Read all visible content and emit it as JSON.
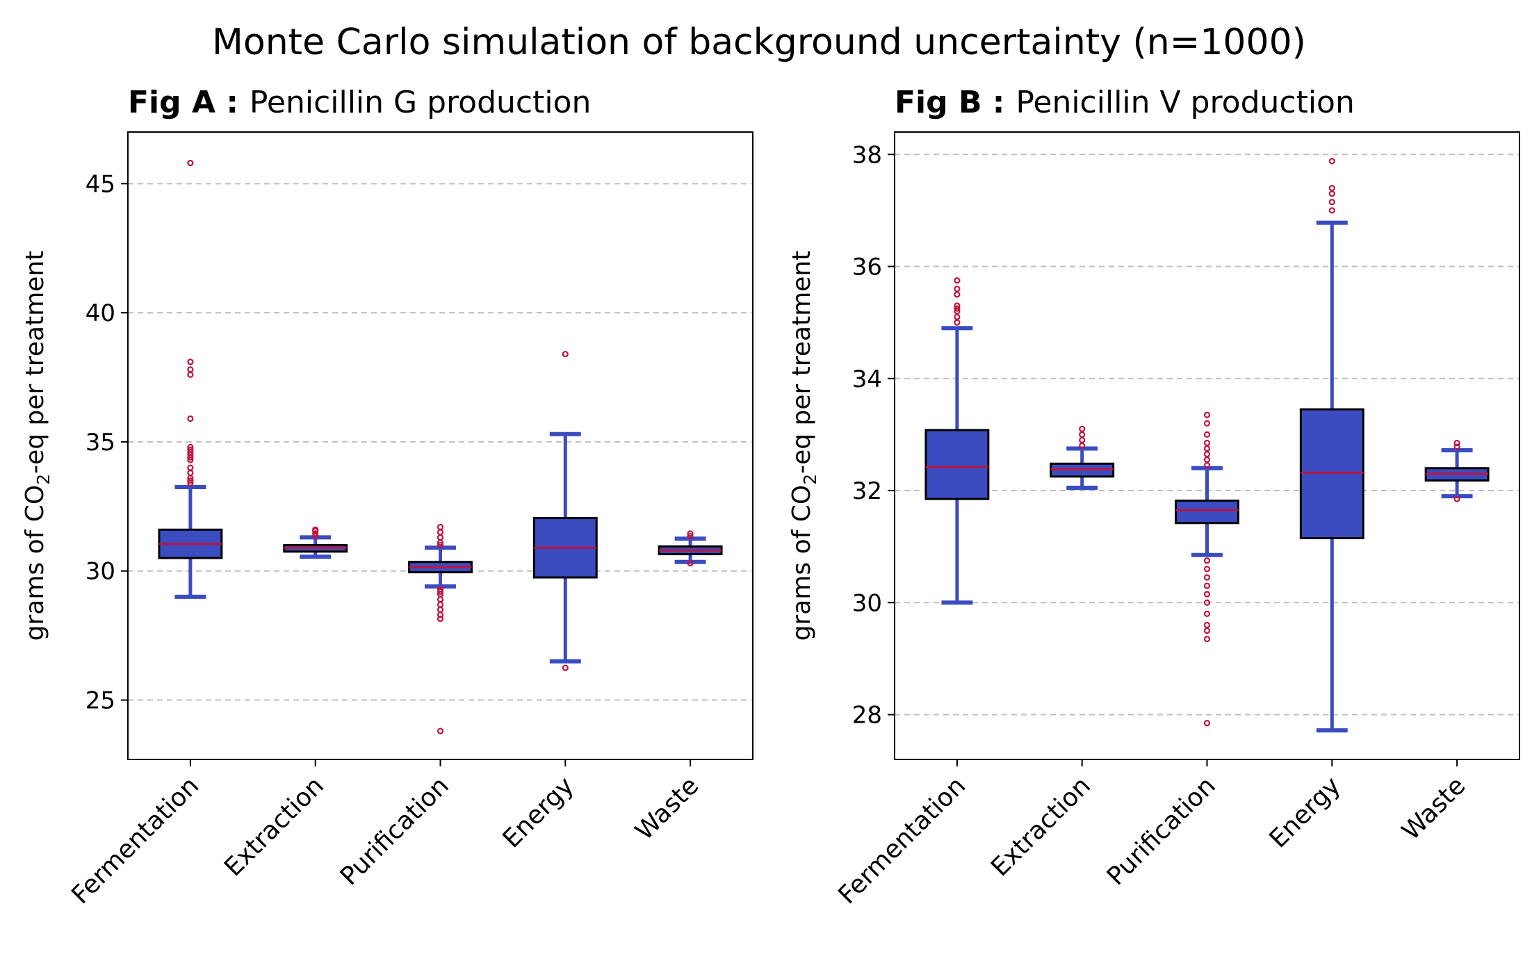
{
  "figure": {
    "title": "Monte Carlo simulation of background uncertainty (n=1000)"
  },
  "style": {
    "box_fill": "#3a4cc0",
    "median_color": "#c0143c",
    "whisker_color": "#3a4cc0",
    "flier_color": "#c0143c",
    "grid_color": "#bfbfbf"
  },
  "chart_data": [
    {
      "type": "box",
      "title_bold": "Fig A :",
      "title": "Penicillin G production",
      "ylabel_prefix": "grams of CO",
      "ylabel_sub": "2",
      "ylabel_suffix": "-eq per treatment",
      "ylim": [
        22.7,
        47.0
      ],
      "yticks": [
        25,
        30,
        35,
        40,
        45
      ],
      "grid": "y-dashed",
      "categories": [
        "Fermentation",
        "Extraction",
        "Purification",
        "Energy",
        "Waste"
      ],
      "boxes": [
        {
          "whislo": 29.0,
          "q1": 30.5,
          "med": 31.05,
          "q3": 31.6,
          "whishi": 33.25,
          "fliers": [
            45.8,
            38.1,
            37.8,
            37.6,
            35.9,
            34.8,
            34.7,
            34.6,
            34.5,
            34.4,
            34.3,
            34.0,
            33.8,
            33.6,
            33.5,
            33.4
          ]
        },
        {
          "whislo": 30.55,
          "q1": 30.75,
          "med": 30.9,
          "q3": 31.0,
          "whishi": 31.3,
          "fliers": [
            31.35,
            31.45,
            31.55,
            31.6
          ]
        },
        {
          "whislo": 29.4,
          "q1": 29.95,
          "med": 30.15,
          "q3": 30.35,
          "whishi": 30.9,
          "fliers": [
            31.7,
            31.5,
            31.3,
            31.1,
            31.0,
            29.3,
            29.2,
            29.1,
            28.9,
            28.7,
            28.5,
            28.3,
            28.15,
            23.8
          ]
        },
        {
          "whislo": 26.5,
          "q1": 29.75,
          "med": 30.9,
          "q3": 32.05,
          "whishi": 35.3,
          "fliers": [
            38.4,
            26.25
          ]
        },
        {
          "whislo": 30.35,
          "q1": 30.65,
          "med": 30.8,
          "q3": 30.95,
          "whishi": 31.25,
          "fliers": [
            31.35,
            31.45,
            30.3
          ]
        }
      ]
    },
    {
      "type": "box",
      "title_bold": "Fig B :",
      "title": "Penicillin V production",
      "ylabel_prefix": "grams of CO",
      "ylabel_sub": "2",
      "ylabel_suffix": "-eq per treatment",
      "ylim": [
        27.2,
        38.4
      ],
      "yticks": [
        28,
        30,
        32,
        34,
        36,
        38
      ],
      "grid": "y-dashed",
      "categories": [
        "Fermentation",
        "Extraction",
        "Purification",
        "Energy",
        "Waste"
      ],
      "boxes": [
        {
          "whislo": 30.0,
          "q1": 31.85,
          "med": 32.42,
          "q3": 33.08,
          "whishi": 34.9,
          "fliers": [
            35.75,
            35.6,
            35.5,
            35.3,
            35.25,
            35.2,
            35.1,
            35.0
          ]
        },
        {
          "whislo": 32.05,
          "q1": 32.25,
          "med": 32.38,
          "q3": 32.48,
          "whishi": 32.75,
          "fliers": [
            32.8,
            32.9,
            33.0,
            33.1
          ]
        },
        {
          "whislo": 30.85,
          "q1": 31.42,
          "med": 31.65,
          "q3": 31.82,
          "whishi": 32.4,
          "fliers": [
            33.35,
            33.2,
            33.0,
            32.85,
            32.75,
            32.65,
            32.55,
            32.45,
            30.75,
            30.6,
            30.45,
            30.3,
            30.15,
            30.0,
            29.8,
            29.6,
            29.5,
            29.35,
            27.85
          ]
        },
        {
          "whislo": 27.72,
          "q1": 31.15,
          "med": 32.32,
          "q3": 33.45,
          "whishi": 36.78,
          "fliers": [
            37.88,
            37.4,
            37.3,
            37.15,
            37.0
          ]
        },
        {
          "whislo": 31.9,
          "q1": 32.18,
          "med": 32.3,
          "q3": 32.4,
          "whishi": 32.72,
          "fliers": [
            32.78,
            32.85,
            31.85
          ]
        }
      ]
    }
  ]
}
